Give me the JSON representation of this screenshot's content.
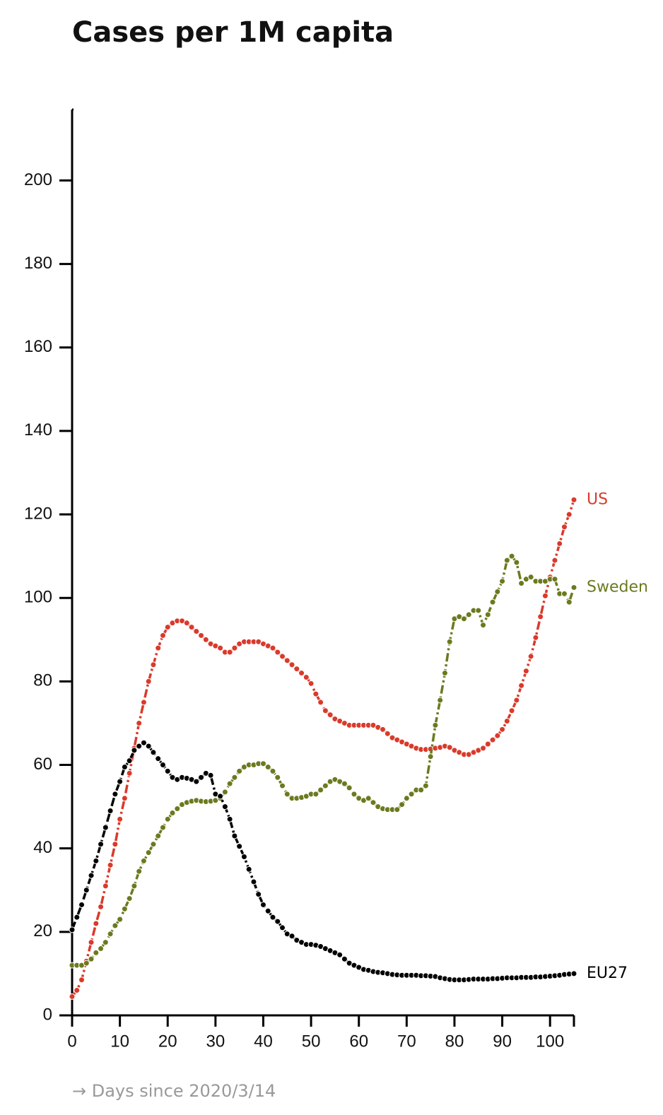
{
  "chart_data": {
    "type": "line",
    "title": "Cases per 1M capita",
    "x_label": "→ Days since 2020/3/14",
    "x": [
      0,
      1,
      2,
      3,
      4,
      5,
      6,
      7,
      8,
      9,
      10,
      11,
      12,
      13,
      14,
      15,
      16,
      17,
      18,
      19,
      20,
      21,
      22,
      23,
      24,
      25,
      26,
      27,
      28,
      29,
      30,
      31,
      32,
      33,
      34,
      35,
      36,
      37,
      38,
      39,
      40,
      41,
      42,
      43,
      44,
      45,
      46,
      47,
      48,
      49,
      50,
      51,
      52,
      53,
      54,
      55,
      56,
      57,
      58,
      59,
      60,
      61,
      62,
      63,
      64,
      65,
      66,
      67,
      68,
      69,
      70,
      71,
      72,
      73,
      74,
      75,
      76,
      77,
      78,
      79,
      80,
      81,
      82,
      83,
      84,
      85,
      86,
      87,
      88,
      89,
      90,
      91,
      92,
      93,
      94,
      95,
      96,
      97,
      98,
      99,
      100,
      101,
      102,
      103,
      104,
      105
    ],
    "xlim": [
      0,
      105
    ],
    "xticks": [
      0,
      10,
      20,
      30,
      40,
      50,
      60,
      70,
      80,
      90,
      100
    ],
    "ylim": [
      0,
      217
    ],
    "yticks": [
      0,
      20,
      40,
      60,
      80,
      100,
      120,
      140,
      160,
      180,
      200
    ],
    "series": [
      {
        "name": "US",
        "color": "#d93a2b",
        "values": [
          4.5,
          6,
          8.5,
          13,
          17.5,
          22,
          26,
          31,
          36,
          41,
          47,
          52,
          58,
          64,
          70,
          75,
          80,
          84,
          88,
          91,
          93,
          94,
          94.5,
          94.5,
          94,
          93,
          92,
          91,
          90,
          89,
          88.5,
          88,
          87,
          87,
          88,
          89,
          89.5,
          89.5,
          89.5,
          89.5,
          89,
          88.5,
          88,
          87,
          86,
          85,
          84,
          83,
          82,
          81,
          79.5,
          77,
          75,
          73,
          72,
          71,
          70.5,
          70,
          69.5,
          69.5,
          69.5,
          69.5,
          69.5,
          69.5,
          69,
          68.5,
          67.5,
          66.5,
          66,
          65.5,
          65,
          64.5,
          64,
          63.7,
          63.7,
          63.8,
          64,
          64.2,
          64.5,
          64.2,
          63.5,
          63,
          62.5,
          62.5,
          63,
          63.5,
          64,
          65,
          66,
          67,
          68.5,
          70.5,
          73,
          75.5,
          79,
          82.5,
          86,
          90.5,
          95.5,
          100.5,
          105,
          109,
          113,
          117,
          120,
          123.5
        ]
      },
      {
        "name": "Sweden",
        "color": "#6b7a1f",
        "values": [
          12,
          12,
          12,
          12.5,
          13.5,
          15,
          16,
          17.5,
          19.5,
          21.5,
          23,
          25.5,
          28,
          31,
          34.5,
          37,
          39,
          41,
          43,
          45,
          47,
          48.5,
          49.5,
          50.5,
          51,
          51.3,
          51.5,
          51.3,
          51.2,
          51.3,
          51.5,
          52,
          53.5,
          55.5,
          57,
          58.5,
          59.5,
          60,
          60,
          60.3,
          60.3,
          59.5,
          58.5,
          57,
          55,
          53,
          52,
          52,
          52.2,
          52.5,
          53,
          53,
          54,
          55,
          56,
          56.5,
          56,
          55.5,
          54.5,
          53,
          52,
          51.5,
          52,
          51,
          50,
          49.5,
          49.3,
          49.3,
          49.3,
          50.5,
          52,
          53,
          54,
          54,
          55,
          62,
          69.5,
          75.5,
          82,
          89.5,
          95,
          95.5,
          95,
          96,
          97,
          97,
          93.5,
          96,
          99,
          101.5,
          104,
          109,
          110,
          108.5,
          103.5,
          104.5,
          105,
          104,
          104,
          104,
          104.5,
          104.5,
          101,
          101,
          99,
          102.5
        ]
      },
      {
        "name": "EU27",
        "color": "#000000",
        "values": [
          20.5,
          23.5,
          26.5,
          30,
          33.5,
          37,
          41,
          45,
          49,
          53,
          56,
          59.5,
          61,
          63.5,
          64.5,
          65.3,
          64.5,
          63,
          61.5,
          60,
          58.5,
          57,
          56.5,
          57,
          56.8,
          56.5,
          56,
          57,
          58,
          57.5,
          53,
          52.5,
          50,
          47,
          43,
          40.5,
          38,
          35,
          32,
          29,
          26.5,
          25,
          23.5,
          22.5,
          21,
          19.5,
          19,
          18,
          17.5,
          17,
          17,
          16.8,
          16.5,
          16,
          15.5,
          15,
          14.5,
          13.5,
          12.5,
          12,
          11.5,
          11,
          10.8,
          10.5,
          10.3,
          10.2,
          10,
          9.8,
          9.7,
          9.6,
          9.6,
          9.6,
          9.6,
          9.5,
          9.5,
          9.4,
          9.3,
          9,
          8.8,
          8.6,
          8.5,
          8.5,
          8.5,
          8.6,
          8.7,
          8.7,
          8.7,
          8.7,
          8.8,
          8.8,
          8.9,
          9,
          9,
          9,
          9.1,
          9.1,
          9.1,
          9.2,
          9.2,
          9.3,
          9.4,
          9.5,
          9.6,
          9.8,
          9.9,
          10
        ]
      }
    ]
  }
}
